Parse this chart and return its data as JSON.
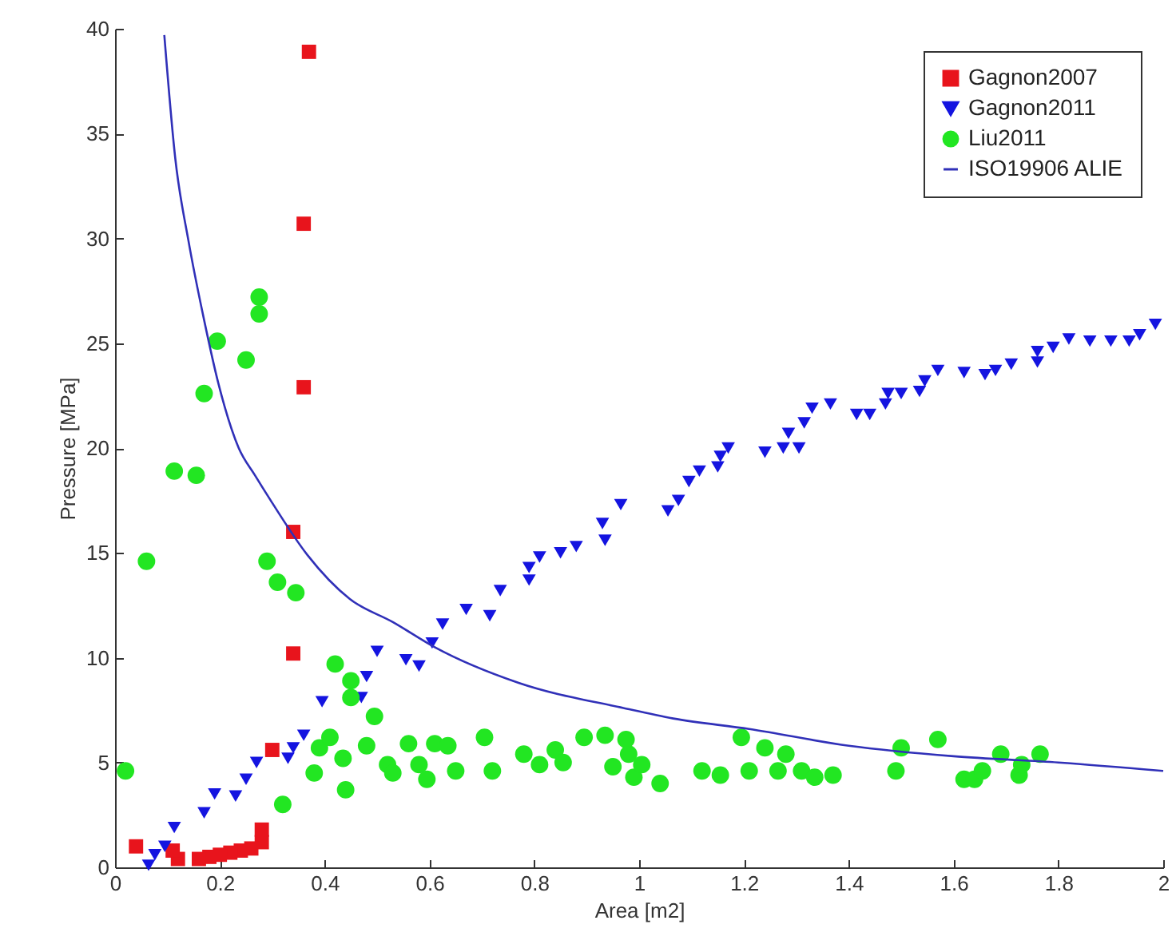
{
  "chart_data": {
    "type": "scatter",
    "xlabel": "Area [m2]",
    "ylabel": "Pressure [MPa]",
    "xlim": [
      0,
      2
    ],
    "ylim": [
      0,
      40
    ],
    "xticks": [
      0,
      0.2,
      0.4,
      0.6,
      0.8,
      1,
      1.2,
      1.4,
      1.6,
      1.8,
      2
    ],
    "yticks": [
      0,
      5,
      10,
      15,
      20,
      25,
      30,
      35,
      40
    ],
    "legend": "top right",
    "series": [
      {
        "name": "Gagnon2007",
        "color": "#e8141c",
        "marker": "square",
        "x": [
          0.37,
          0.36,
          0.36,
          0.34,
          0.34,
          0.3,
          0.28,
          0.28,
          0.26,
          0.24,
          0.22,
          0.2,
          0.18,
          0.16,
          0.12,
          0.11,
          0.04
        ],
        "values": [
          38.9,
          30.7,
          22.9,
          16.0,
          10.2,
          5.6,
          1.8,
          1.2,
          0.9,
          0.8,
          0.7,
          0.6,
          0.5,
          0.4,
          0.4,
          0.8,
          1.0
        ]
      },
      {
        "name": "Gagnon2011",
        "color": "#1414e0",
        "marker": "triangle",
        "x": [
          0.064,
          0.076,
          0.095,
          0.113,
          0.17,
          0.19,
          0.23,
          0.25,
          0.27,
          0.33,
          0.34,
          0.36,
          0.395,
          0.47,
          0.48,
          0.5,
          0.555,
          0.58,
          0.605,
          0.625,
          0.67,
          0.715,
          0.735,
          0.79,
          0.79,
          0.81,
          0.85,
          0.88,
          0.93,
          0.935,
          0.965,
          1.055,
          1.075,
          1.095,
          1.115,
          1.15,
          1.155,
          1.17,
          1.24,
          1.275,
          1.285,
          1.305,
          1.315,
          1.33,
          1.365,
          1.415,
          1.44,
          1.47,
          1.475,
          1.5,
          1.535,
          1.545,
          1.57,
          1.62,
          1.66,
          1.68,
          1.71,
          1.76,
          1.76,
          1.79,
          1.82,
          1.86,
          1.9,
          1.935,
          1.955,
          1.985
        ],
        "values": [
          0.1,
          0.6,
          1.0,
          1.9,
          2.6,
          3.5,
          3.4,
          4.2,
          5.0,
          5.2,
          5.7,
          6.3,
          7.9,
          8.1,
          9.1,
          10.3,
          9.9,
          9.6,
          10.7,
          11.6,
          12.3,
          12.0,
          13.2,
          13.7,
          14.3,
          14.8,
          15.0,
          15.3,
          16.4,
          15.6,
          17.3,
          17.0,
          17.5,
          18.4,
          18.9,
          19.1,
          19.6,
          20.0,
          19.8,
          20.0,
          20.7,
          20.0,
          21.2,
          21.9,
          22.1,
          21.6,
          21.6,
          22.1,
          22.6,
          22.6,
          22.7,
          23.2,
          23.7,
          23.6,
          23.5,
          23.7,
          24.0,
          24.1,
          24.6,
          24.8,
          25.2,
          25.1,
          25.1,
          25.1,
          25.4,
          25.9
        ]
      },
      {
        "name": "Liu2011",
        "color": "#22e622",
        "marker": "circle",
        "x": [
          0.113,
          0.155,
          0.17,
          0.195,
          0.25,
          0.275,
          0.275,
          0.06,
          0.02,
          0.29,
          0.31,
          0.345,
          0.32,
          0.38,
          0.39,
          0.41,
          0.42,
          0.45,
          0.45,
          0.495,
          0.48,
          0.435,
          0.44,
          0.52,
          0.53,
          0.56,
          0.58,
          0.595,
          0.61,
          0.635,
          0.65,
          0.705,
          0.72,
          0.78,
          0.81,
          0.84,
          0.855,
          0.895,
          0.935,
          0.95,
          0.98,
          0.975,
          0.99,
          1.005,
          1.04,
          1.12,
          1.155,
          1.195,
          1.21,
          1.24,
          1.265,
          1.28,
          1.31,
          1.335,
          1.37,
          1.49,
          1.5,
          1.57,
          1.62,
          1.64,
          1.655,
          1.69,
          1.725,
          1.73,
          1.765
        ],
        "values": [
          18.9,
          18.7,
          22.6,
          25.1,
          24.2,
          27.2,
          26.4,
          14.6,
          4.6,
          14.6,
          13.6,
          13.1,
          3.0,
          4.5,
          5.7,
          6.2,
          9.7,
          8.9,
          8.1,
          7.2,
          5.8,
          5.2,
          3.7,
          4.9,
          4.5,
          5.9,
          4.9,
          4.2,
          5.9,
          5.8,
          4.6,
          6.2,
          4.6,
          5.4,
          4.9,
          5.6,
          5.0,
          6.2,
          6.3,
          4.8,
          5.4,
          6.1,
          4.3,
          4.9,
          4.0,
          4.6,
          4.4,
          6.2,
          4.6,
          5.7,
          4.6,
          5.4,
          4.6,
          4.3,
          4.4,
          4.6,
          5.7,
          6.1,
          4.2,
          4.2,
          4.6,
          5.4,
          4.4,
          4.9,
          5.4
        ]
      },
      {
        "name": "ISO19906 ALIE",
        "type": "line",
        "color": "#3030b8",
        "marker": "none",
        "x": [
          0.094,
          0.115,
          0.14,
          0.17,
          0.197,
          0.236,
          0.267,
          0.297,
          0.367,
          0.448,
          0.53,
          0.61,
          0.77,
          0.97,
          1.065,
          1.21,
          1.4,
          1.6,
          1.8,
          2.0
        ],
        "values": [
          39.7,
          33.8,
          29.9,
          26.1,
          23.1,
          20.0,
          18.7,
          17.5,
          14.9,
          12.8,
          11.7,
          10.5,
          8.8,
          7.6,
          7.1,
          6.6,
          5.8,
          5.3,
          5.0,
          4.6
        ]
      }
    ]
  }
}
